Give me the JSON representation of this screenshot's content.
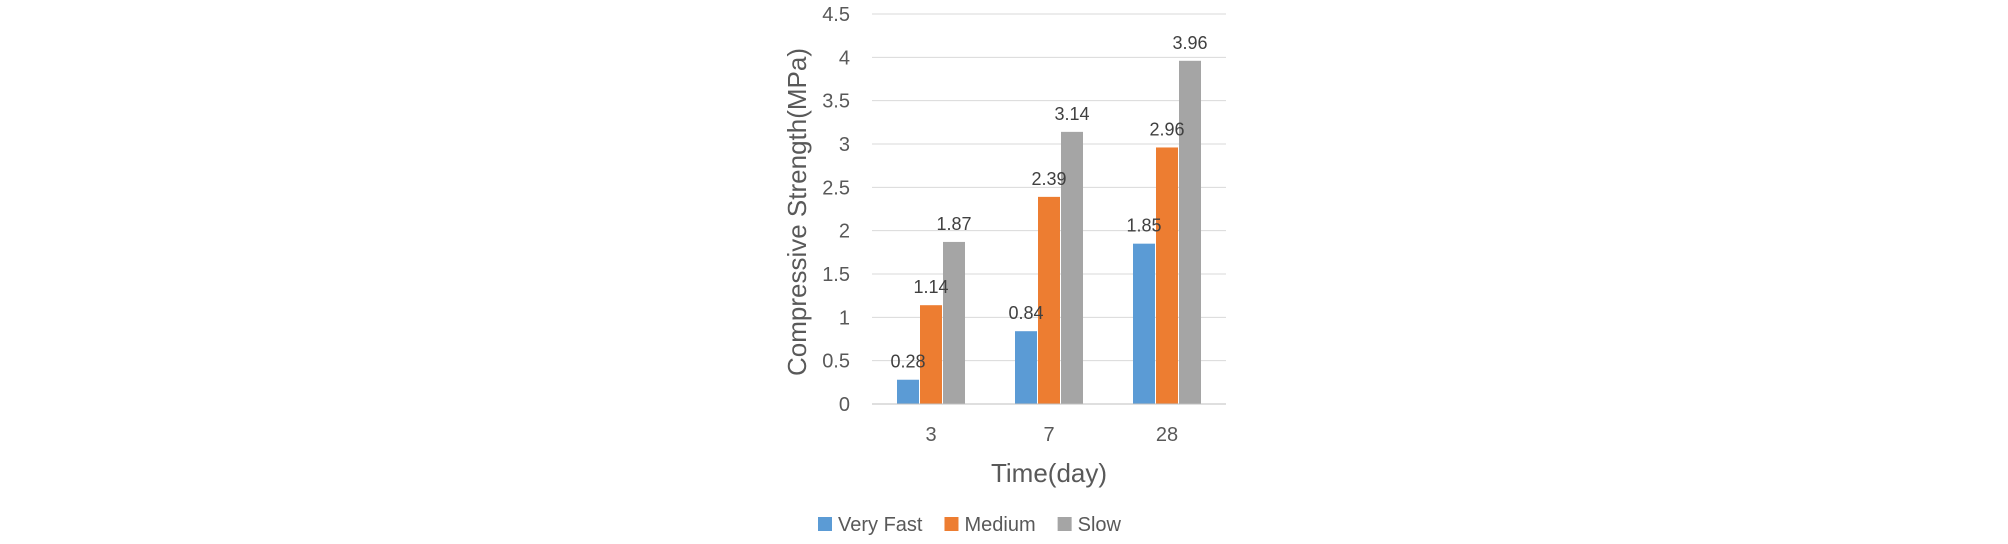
{
  "chart_data": {
    "type": "bar",
    "title": "",
    "xlabel": "Time(day)",
    "ylabel": "Compressive Strength(MPa)",
    "categories": [
      "3",
      "7",
      "28"
    ],
    "ylim": [
      0,
      4.5
    ],
    "ytick_step": 0.5,
    "yticks": [
      "0",
      "0.5",
      "1",
      "1.5",
      "2",
      "2.5",
      "3",
      "3.5",
      "4",
      "4.5"
    ],
    "grid": true,
    "legend_position": "bottom",
    "series": [
      {
        "name": "Very Fast",
        "color": "#5B9BD5",
        "values": [
          0.28,
          0.84,
          1.85
        ],
        "labels": [
          "0.28",
          "0.84",
          "1.85"
        ]
      },
      {
        "name": "Medium",
        "color": "#ED7D31",
        "values": [
          1.14,
          2.39,
          2.96
        ],
        "labels": [
          "1.14",
          "2.39",
          "2.96"
        ]
      },
      {
        "name": "Slow",
        "color": "#A5A5A5",
        "values": [
          1.87,
          3.14,
          3.96
        ],
        "labels": [
          "1.87",
          "3.14",
          "3.96"
        ]
      }
    ]
  }
}
